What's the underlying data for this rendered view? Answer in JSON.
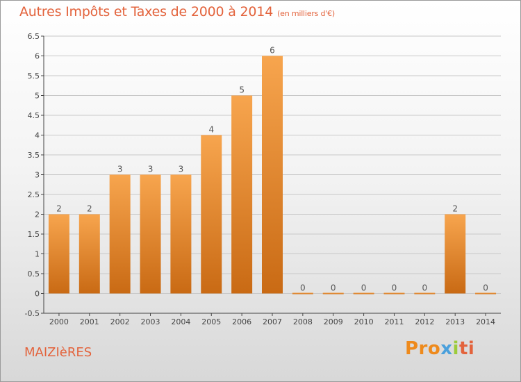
{
  "header": {
    "title": "Autres Impôts et Taxes de 2000 à 2014",
    "unit": "(en milliers d'€)"
  },
  "footer": {
    "commune": "MAIZIèRES",
    "logo_parts": [
      "Pro",
      "x",
      "i",
      "ti"
    ]
  },
  "colors": {
    "title": "#e3633c",
    "bar_top": "#f7a54e",
    "bar_bottom": "#c96a14",
    "axis": "#444444",
    "grid": "#c8c8c8"
  },
  "chart_data": {
    "type": "bar",
    "categories": [
      "2000",
      "2001",
      "2002",
      "2003",
      "2004",
      "2005",
      "2006",
      "2007",
      "2008",
      "2009",
      "2010",
      "2011",
      "2012",
      "2013",
      "2014"
    ],
    "values": [
      2,
      2,
      3,
      3,
      3,
      4,
      5,
      6,
      0,
      0,
      0,
      0,
      0,
      2,
      0
    ],
    "ylim": [
      -0.5,
      6.5
    ],
    "yticks": [
      -0.5,
      0,
      0.5,
      1,
      1.5,
      2,
      2.5,
      3,
      3.5,
      4,
      4.5,
      5,
      5.5,
      6,
      6.5
    ],
    "ytick_labels": [
      "-0.5",
      "0",
      "0.5",
      "1",
      "1.5",
      "2",
      "2.5",
      "3",
      "3.5",
      "4",
      "4.5",
      "5",
      "5.5",
      "6",
      "6.5"
    ],
    "title": "Autres Impôts et Taxes de 2000 à 2014",
    "xlabel": "",
    "ylabel": "",
    "grid": true,
    "data_labels": true
  }
}
